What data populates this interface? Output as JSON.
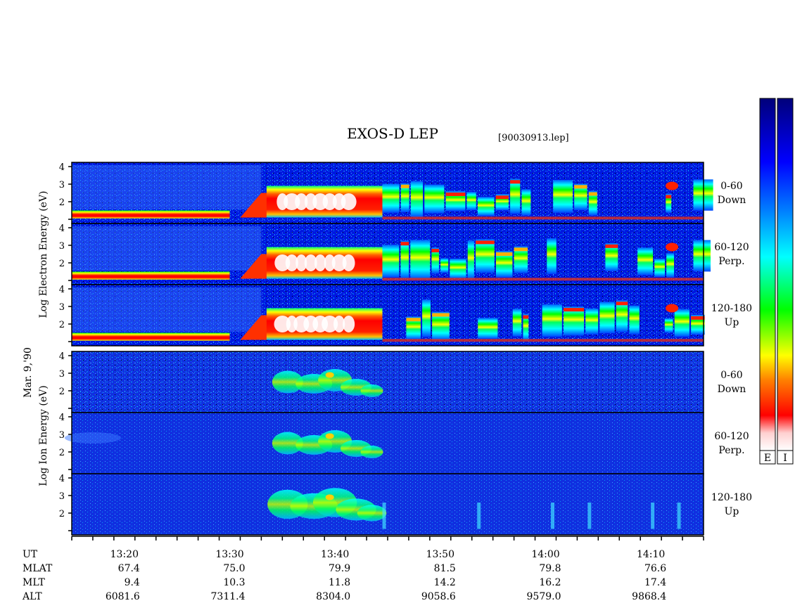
{
  "title": "EXOS-D LEP",
  "file_tag": "[90030913.lep]",
  "date_label": "Mar. 9,'90",
  "electron_ylabel_lines": [
    "Log",
    "Electron",
    "Energy",
    "(eV)"
  ],
  "ion_ylabel_lines": [
    "Log",
    "Ion",
    "Energy",
    "(eV)"
  ],
  "colorbars": {
    "electron_label": "E",
    "ion_label": "I",
    "scale_colors": [
      "#ffffff",
      "#ff0000",
      "#ff8000",
      "#ffff00",
      "#00ff00",
      "#00ffff",
      "#0080ff",
      "#0000ff",
      "#00007a"
    ]
  },
  "chart_data": {
    "type": "heatmap",
    "x_axis": {
      "ticks": [
        "13:20",
        "13:30",
        "13:40",
        "13:50",
        "14:00",
        "14:10"
      ],
      "range": [
        "13:15",
        "14:15"
      ]
    },
    "y_axis": {
      "ticks": [
        "1",
        "2",
        "3",
        "4"
      ],
      "log_energy_eV": true
    },
    "panels": [
      {
        "species": "Electron",
        "pitch_angle": "0-60",
        "direction": "Down"
      },
      {
        "species": "Electron",
        "pitch_angle": "60-120",
        "direction": "Perp."
      },
      {
        "species": "Electron",
        "pitch_angle": "120-180",
        "direction": "Up"
      },
      {
        "species": "Ion",
        "pitch_angle": "0-60",
        "direction": "Down"
      },
      {
        "species": "Ion",
        "pitch_angle": "60-120",
        "direction": "Perp."
      },
      {
        "species": "Ion",
        "pitch_angle": "120-180",
        "direction": "Up"
      }
    ],
    "ephemeris": {
      "labels": [
        "UT",
        "MLAT",
        "MLT",
        "ALT"
      ],
      "rows": [
        [
          "67.4",
          "75.0",
          "79.9",
          "81.5",
          "79.8",
          "76.6"
        ],
        [
          "9.4",
          "10.3",
          "11.8",
          "14.2",
          "16.2",
          "17.4"
        ],
        [
          "6081.6",
          "7311.4",
          "8304.0",
          "9058.6",
          "9579.0",
          "9868.4"
        ]
      ]
    }
  }
}
